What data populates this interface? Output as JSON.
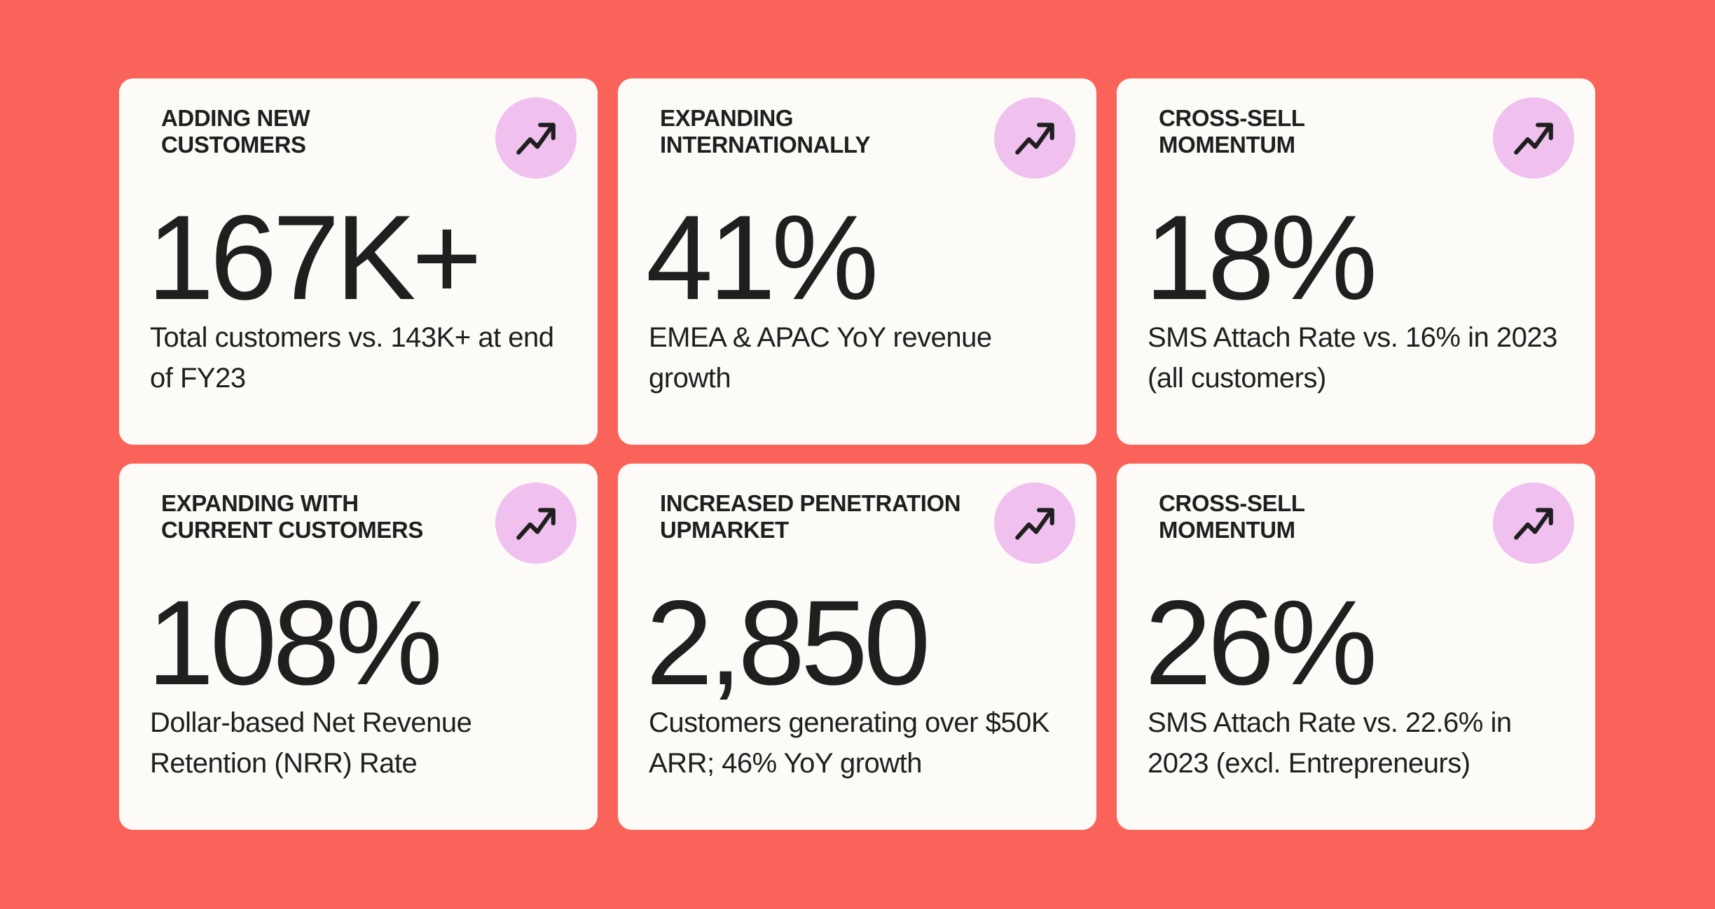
{
  "colors": {
    "background": "#f9635a",
    "card": "#fdfbf7",
    "badge": "#f0c1ef",
    "text": "#1f1f1f"
  },
  "cards": [
    {
      "title": "ADDING NEW\nCUSTOMERS",
      "metric": "167K+",
      "description": "Total customers vs. 143K+ at end of FY23",
      "icon": "trending-up-icon"
    },
    {
      "title": "EXPANDING\nINTERNATIONALLY",
      "metric": "41%",
      "description": "EMEA & APAC YoY revenue growth",
      "icon": "trending-up-icon"
    },
    {
      "title": "CROSS-SELL\nMOMENTUM",
      "metric": "18%",
      "description": "SMS Attach Rate vs. 16% in 2023 (all customers)",
      "icon": "trending-up-icon"
    },
    {
      "title": "EXPANDING WITH\nCURRENT CUSTOMERS",
      "metric": "108%",
      "description": "Dollar-based Net Revenue Retention (NRR) Rate",
      "icon": "trending-up-icon"
    },
    {
      "title": "INCREASED PENETRATION\nUPMARKET",
      "metric": "2,850",
      "description": "Customers generating over $50K ARR; 46% YoY growth",
      "icon": "trending-up-icon"
    },
    {
      "title": "CROSS-SELL\nMOMENTUM",
      "metric": "26%",
      "description": "SMS Attach Rate vs. 22.6% in 2023 (excl. Entrepreneurs)",
      "icon": "trending-up-icon"
    }
  ]
}
